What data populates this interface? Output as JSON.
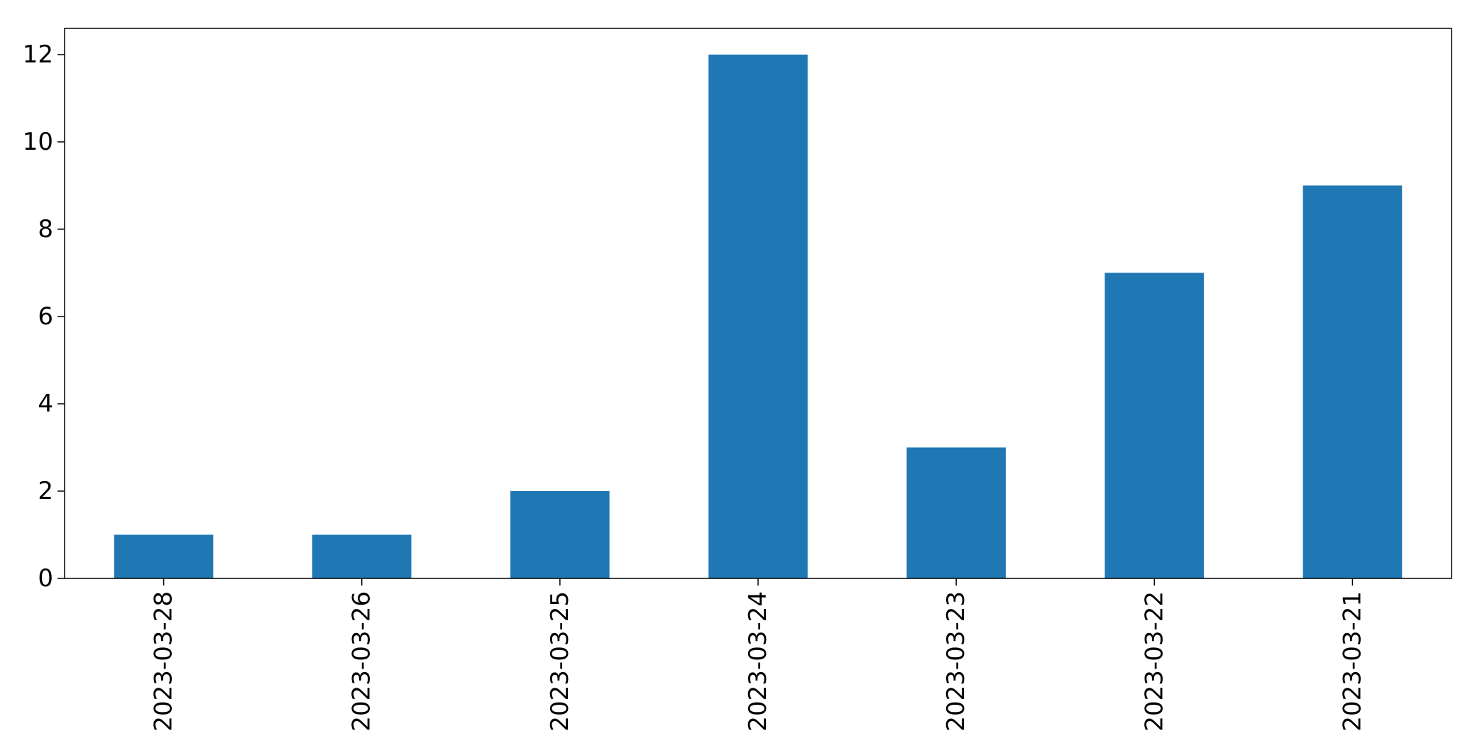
{
  "chart_data": {
    "type": "bar",
    "title": "",
    "xlabel": "",
    "ylabel": "",
    "categories": [
      "2023-03-28",
      "2023-03-26",
      "2023-03-25",
      "2023-03-24",
      "2023-03-23",
      "2023-03-22",
      "2023-03-21"
    ],
    "values": [
      1,
      1,
      2,
      12,
      3,
      7,
      9
    ],
    "ylim": [
      0,
      12.6
    ],
    "yticks": [
      0,
      2,
      4,
      6,
      8,
      10,
      12
    ],
    "grid": false,
    "legend": "none",
    "bar_color": "#1f77b4",
    "x_tick_rotation": "vertical"
  }
}
